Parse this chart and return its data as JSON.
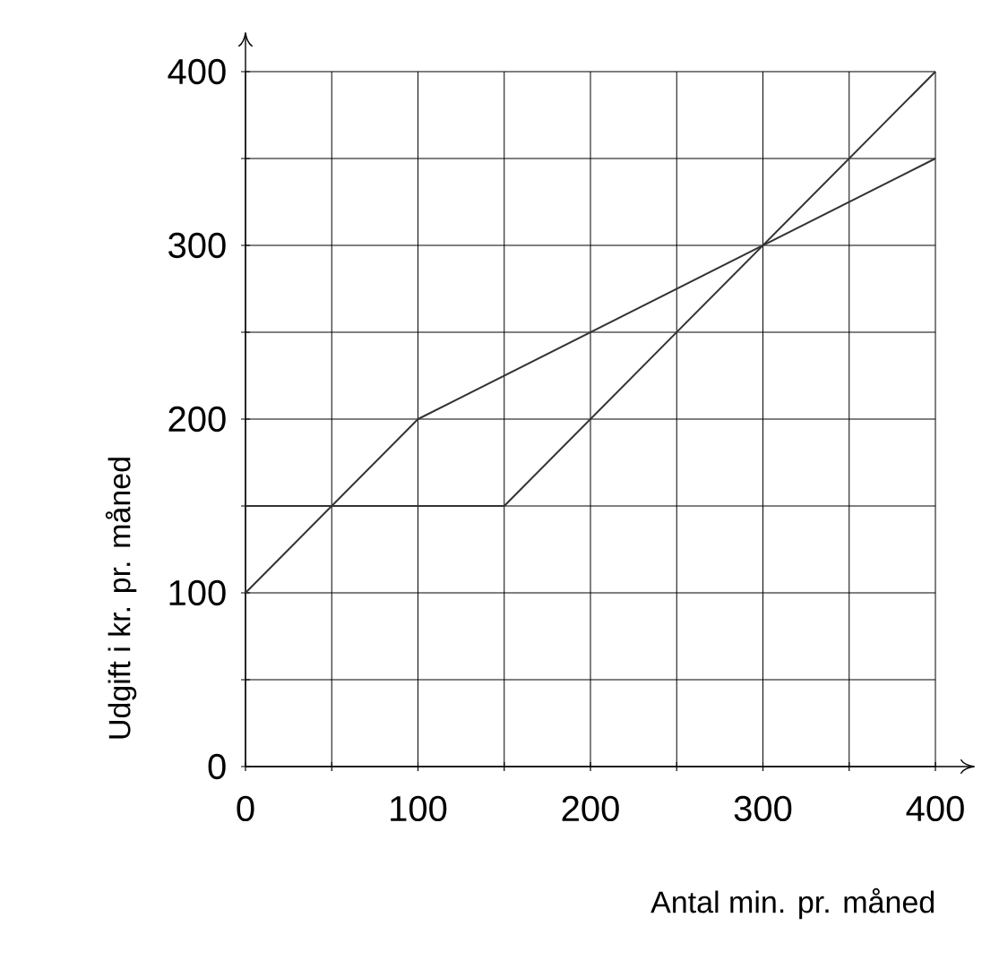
{
  "chart_data": {
    "type": "line",
    "xlabel": "Antal min. pr. måned",
    "ylabel": "Udgift i kr. pr. måned",
    "series": [
      {
        "color": "#333333",
        "x": [
          0,
          100,
          400
        ],
        "values": [
          100,
          200,
          350
        ]
      },
      {
        "color": "#333333",
        "x": [
          0,
          150,
          400
        ],
        "values": [
          150,
          150,
          400
        ]
      }
    ],
    "xlim": [
      0,
      400
    ],
    "ylim": [
      0,
      400
    ],
    "xticks": [
      0,
      {
        "value": 50,
        "label": null
      },
      100,
      {
        "value": 150,
        "label": null
      },
      200,
      {
        "value": 250,
        "label": null
      },
      300,
      {
        "value": 350,
        "label": null
      },
      400
    ],
    "yticks": [
      0,
      {
        "value": 50,
        "label": null
      },
      100,
      {
        "value": 150,
        "label": null
      },
      200,
      {
        "value": 250,
        "label": null
      },
      300,
      {
        "value": 350,
        "label": null
      },
      400
    ],
    "grid": true,
    "marker": "none",
    "line_style": "solid"
  }
}
